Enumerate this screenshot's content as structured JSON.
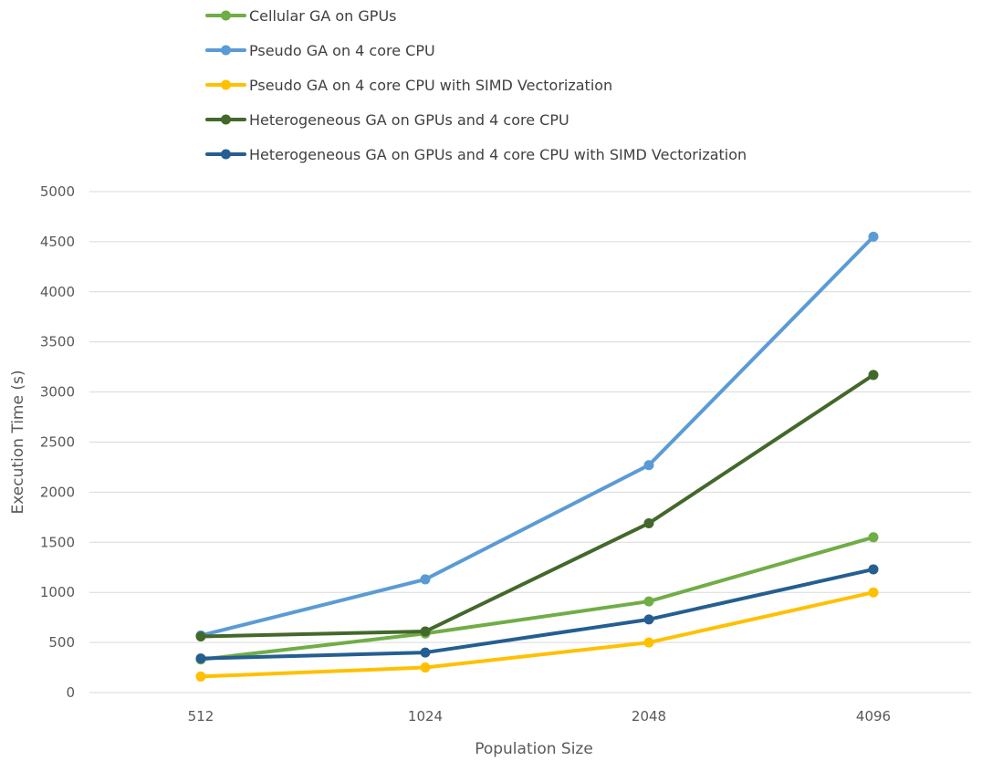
{
  "chart_data": {
    "type": "line",
    "title": "",
    "xlabel": "Population Size",
    "ylabel": "Execution Time  (s)",
    "categories": [
      "512",
      "1024",
      "2048",
      "4096"
    ],
    "ylim": [
      0,
      5000
    ],
    "yticks": [
      0,
      500,
      1000,
      1500,
      2000,
      2500,
      3000,
      3500,
      4000,
      4500,
      5000
    ],
    "grid": true,
    "legend_position": "top",
    "series": [
      {
        "name": "Cellular GA on GPUs",
        "color": "#70ad47",
        "values": [
          330,
          590,
          910,
          1550
        ]
      },
      {
        "name": "Pseudo GA on 4 core CPU",
        "color": "#5b9bd5",
        "values": [
          570,
          1130,
          2270,
          4550
        ]
      },
      {
        "name": "Pseudo GA on 4 core CPU with SIMD Vectorization",
        "color": "#ffc000",
        "values": [
          160,
          250,
          500,
          1000
        ]
      },
      {
        "name": "Heterogeneous GA on GPUs and 4 core CPU",
        "color": "#43682b",
        "values": [
          560,
          610,
          1690,
          3170
        ]
      },
      {
        "name": "Heterogeneous GA on GPUs and 4 core CPU with SIMD Vectorization",
        "color": "#255e91",
        "values": [
          340,
          400,
          730,
          1230
        ]
      }
    ]
  }
}
